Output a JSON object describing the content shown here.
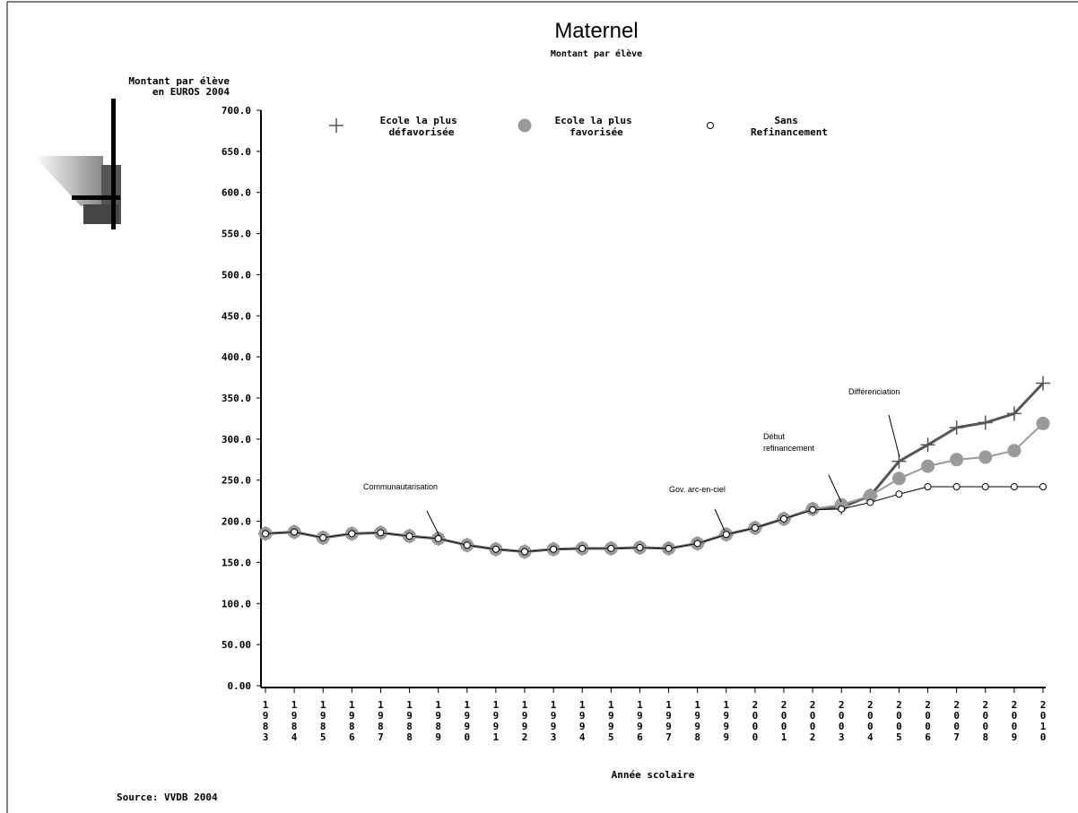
{
  "chart_data": {
    "type": "line",
    "title": "Maternel",
    "subtitle": "Montant par élève",
    "ylabel": [
      "Montant par élève",
      "en EUROS 2004"
    ],
    "xlabel": "Année scolaire",
    "source": "Source: VVDB 2004",
    "categories": [
      "1983",
      "1984",
      "1985",
      "1986",
      "1987",
      "1988",
      "1989",
      "1990",
      "1991",
      "1992",
      "1993",
      "1994",
      "1995",
      "1996",
      "1997",
      "1998",
      "1999",
      "2000",
      "2001",
      "2002",
      "2003",
      "2004",
      "2005",
      "2006",
      "2007",
      "2008",
      "2009",
      "2010"
    ],
    "series": [
      {
        "name": "Ecole la plus défavorisée",
        "color": "#555555",
        "marker": "plus",
        "values": [
          185,
          187,
          180,
          185,
          186,
          182,
          179,
          171,
          166,
          163,
          166,
          167,
          167,
          168,
          167,
          173,
          184,
          192,
          203,
          215,
          217,
          231,
          273,
          293,
          314,
          320,
          331,
          368
        ]
      },
      {
        "name": "Ecole la plus favorisée",
        "color": "#9a9a9a",
        "marker": "disc",
        "values": [
          185,
          187,
          180,
          185,
          186,
          182,
          179,
          171,
          166,
          163,
          166,
          167,
          167,
          168,
          167,
          173,
          184,
          192,
          203,
          215,
          220,
          231,
          252,
          267,
          275,
          278,
          286,
          319
        ]
      },
      {
        "name": "Sans Refinancement",
        "color": "#000000",
        "marker": "ring",
        "values": [
          185,
          187,
          180,
          185,
          186,
          182,
          179,
          171,
          166,
          163,
          166,
          167,
          167,
          168,
          167,
          173,
          184,
          192,
          203,
          214,
          215,
          223,
          233,
          242,
          242,
          242,
          242,
          242
        ]
      }
    ],
    "ylim": [
      0,
      700
    ],
    "yticks": [
      {
        "value": 0,
        "label": "0.00"
      },
      {
        "value": 50,
        "label": "50.00"
      },
      {
        "value": 100,
        "label": "100.0"
      },
      {
        "value": 150,
        "label": "150.0"
      },
      {
        "value": 200,
        "label": "200.0"
      },
      {
        "value": 250,
        "label": "250.0"
      },
      {
        "value": 300,
        "label": "300.0"
      },
      {
        "value": 350,
        "label": "350.0"
      },
      {
        "value": 400,
        "label": "400.0"
      },
      {
        "value": 450,
        "label": "450.0"
      },
      {
        "value": 500,
        "label": "500.0"
      },
      {
        "value": 550,
        "label": "550.0"
      },
      {
        "value": 600,
        "label": "600.0"
      },
      {
        "value": 650,
        "label": "650.0"
      },
      {
        "value": 700,
        "label": "700.0"
      }
    ],
    "annotations": [
      {
        "lines": [
          "Communautarisation"
        ]
      },
      {
        "lines": [
          "Gov. arc-en-ciel"
        ]
      },
      {
        "lines": [
          "Début",
          "refinancement"
        ]
      },
      {
        "lines": [
          "Différenciation"
        ]
      }
    ],
    "grid": false
  }
}
